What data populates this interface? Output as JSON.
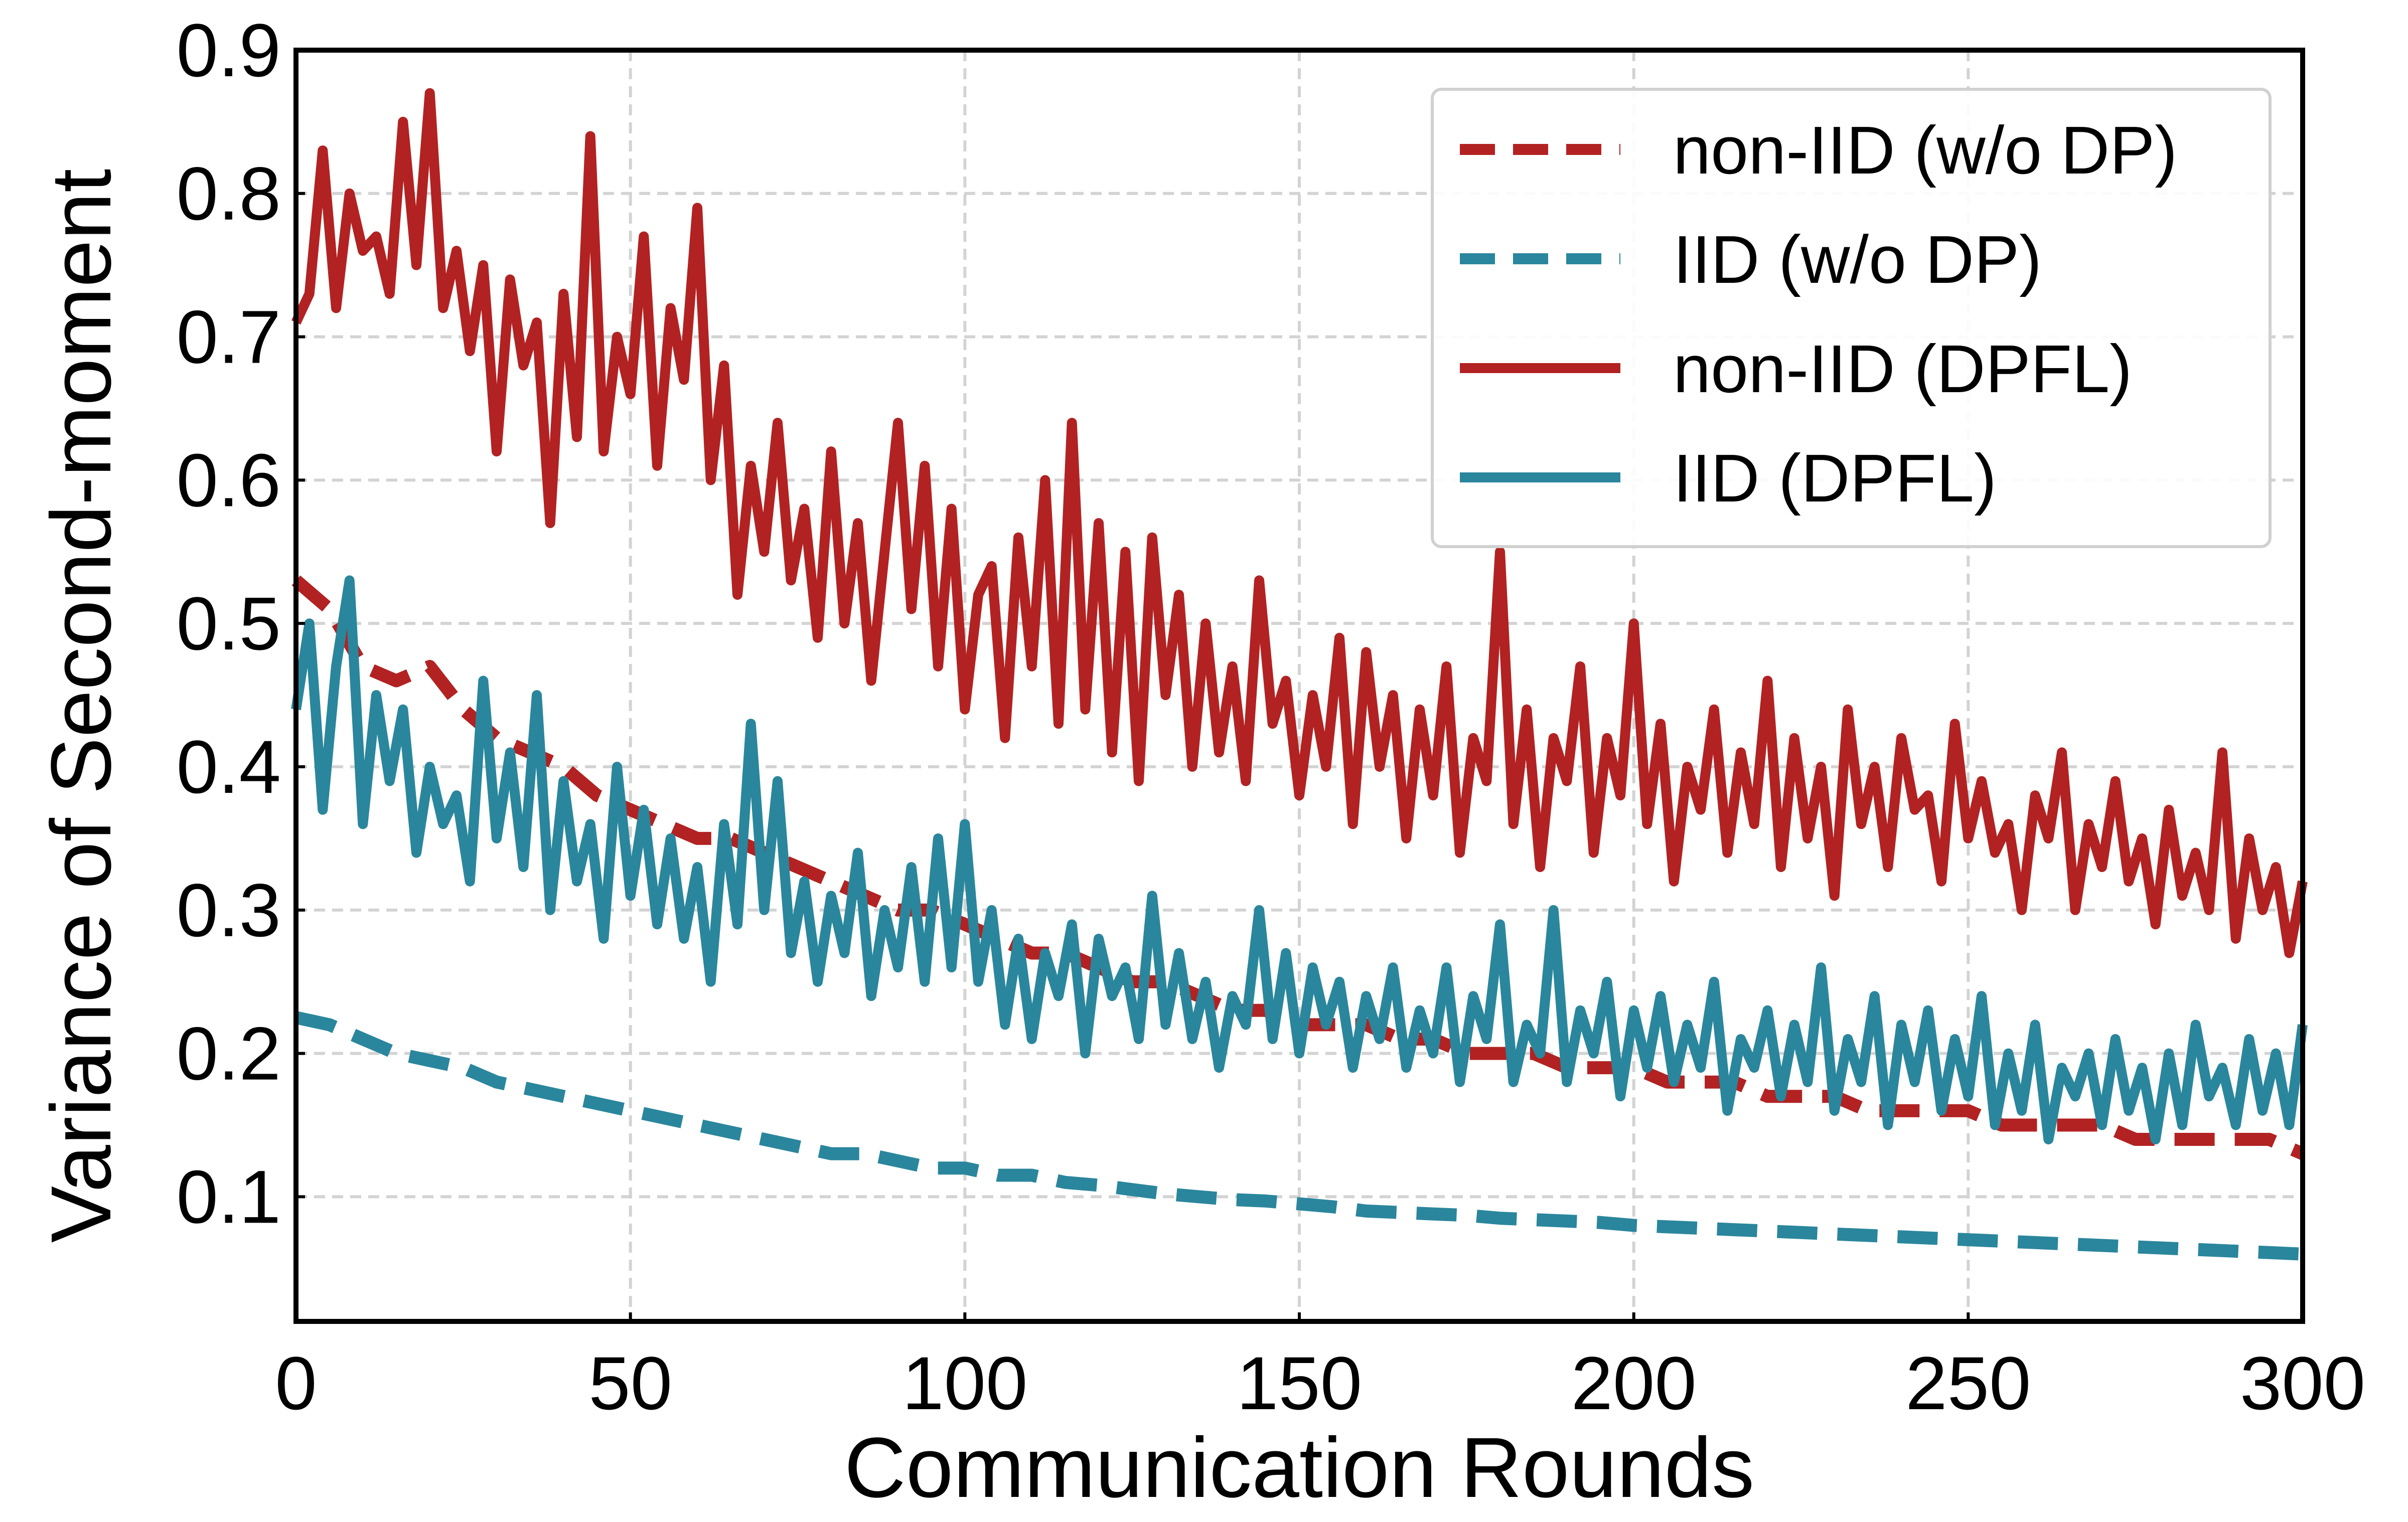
{
  "chart_data": {
    "type": "line",
    "title": "",
    "xlabel": "Communication Rounds",
    "ylabel": "Variance of Second-moment",
    "xlim": [
      0,
      300
    ],
    "ylim": [
      0.013,
      0.9
    ],
    "xticks": [
      0,
      50,
      100,
      150,
      200,
      250,
      300
    ],
    "xtick_labels": [
      "0",
      "50",
      "100",
      "150",
      "200",
      "250",
      "300"
    ],
    "yticks": [
      0.1,
      0.2,
      0.3,
      0.4,
      0.5,
      0.6,
      0.7,
      0.8,
      0.9
    ],
    "ytick_labels": [
      "0.1",
      "0.2",
      "0.3",
      "0.4",
      "0.5",
      "0.6",
      "0.7",
      "0.8",
      "0.9"
    ],
    "grid": true,
    "legend_position": "top-right",
    "series": [
      {
        "name": "non-IID (w/o DP)",
        "color": "#b22222",
        "style": "dashed",
        "x": [
          0,
          5,
          10,
          15,
          20,
          25,
          30,
          35,
          40,
          45,
          50,
          55,
          60,
          65,
          70,
          75,
          80,
          85,
          90,
          95,
          100,
          105,
          110,
          115,
          120,
          125,
          130,
          135,
          140,
          145,
          150,
          155,
          160,
          165,
          170,
          175,
          180,
          185,
          190,
          195,
          200,
          205,
          210,
          215,
          220,
          225,
          230,
          235,
          240,
          245,
          250,
          255,
          260,
          265,
          270,
          275,
          280,
          285,
          290,
          295,
          300
        ],
        "values": [
          0.53,
          0.51,
          0.47,
          0.46,
          0.47,
          0.44,
          0.42,
          0.41,
          0.4,
          0.38,
          0.37,
          0.36,
          0.35,
          0.35,
          0.34,
          0.33,
          0.32,
          0.31,
          0.3,
          0.3,
          0.29,
          0.28,
          0.27,
          0.27,
          0.26,
          0.25,
          0.25,
          0.24,
          0.23,
          0.23,
          0.22,
          0.22,
          0.22,
          0.21,
          0.21,
          0.2,
          0.2,
          0.2,
          0.19,
          0.19,
          0.19,
          0.18,
          0.18,
          0.18,
          0.17,
          0.17,
          0.17,
          0.16,
          0.16,
          0.16,
          0.16,
          0.15,
          0.15,
          0.15,
          0.15,
          0.14,
          0.14,
          0.14,
          0.14,
          0.14,
          0.13
        ]
      },
      {
        "name": "IID (w/o DP)",
        "color": "#2a869c",
        "style": "dashed",
        "x": [
          0,
          5,
          10,
          15,
          20,
          25,
          30,
          35,
          40,
          45,
          50,
          55,
          60,
          65,
          70,
          75,
          80,
          85,
          90,
          95,
          100,
          105,
          110,
          115,
          120,
          125,
          130,
          135,
          140,
          145,
          150,
          155,
          160,
          165,
          170,
          175,
          180,
          185,
          190,
          195,
          200,
          205,
          210,
          215,
          220,
          225,
          230,
          235,
          240,
          245,
          250,
          255,
          260,
          265,
          270,
          275,
          280,
          285,
          290,
          295,
          300
        ],
        "values": [
          0.225,
          0.22,
          0.21,
          0.2,
          0.195,
          0.19,
          0.18,
          0.175,
          0.17,
          0.165,
          0.16,
          0.155,
          0.15,
          0.145,
          0.14,
          0.135,
          0.13,
          0.13,
          0.125,
          0.12,
          0.12,
          0.115,
          0.115,
          0.11,
          0.108,
          0.105,
          0.102,
          0.1,
          0.098,
          0.097,
          0.095,
          0.093,
          0.09,
          0.089,
          0.088,
          0.087,
          0.085,
          0.084,
          0.083,
          0.082,
          0.08,
          0.079,
          0.078,
          0.077,
          0.076,
          0.075,
          0.074,
          0.073,
          0.072,
          0.071,
          0.07,
          0.069,
          0.068,
          0.067,
          0.066,
          0.065,
          0.064,
          0.063,
          0.062,
          0.061,
          0.06
        ]
      },
      {
        "name": "non-IID (DPFL)",
        "color": "#b22222",
        "style": "solid",
        "x": [
          0,
          2,
          4,
          6,
          8,
          10,
          12,
          14,
          16,
          18,
          20,
          22,
          24,
          26,
          28,
          30,
          32,
          34,
          36,
          38,
          40,
          42,
          44,
          46,
          48,
          50,
          52,
          54,
          56,
          58,
          60,
          62,
          64,
          66,
          68,
          70,
          72,
          74,
          76,
          78,
          80,
          82,
          84,
          86,
          88,
          90,
          92,
          94,
          96,
          98,
          100,
          102,
          104,
          106,
          108,
          110,
          112,
          114,
          116,
          118,
          120,
          122,
          124,
          126,
          128,
          130,
          132,
          134,
          136,
          138,
          140,
          142,
          144,
          146,
          148,
          150,
          152,
          154,
          156,
          158,
          160,
          162,
          164,
          166,
          168,
          170,
          172,
          174,
          176,
          178,
          180,
          182,
          184,
          186,
          188,
          190,
          192,
          194,
          196,
          198,
          200,
          202,
          204,
          206,
          208,
          210,
          212,
          214,
          216,
          218,
          220,
          222,
          224,
          226,
          228,
          230,
          232,
          234,
          236,
          238,
          240,
          242,
          244,
          246,
          248,
          250,
          252,
          254,
          256,
          258,
          260,
          262,
          264,
          266,
          268,
          270,
          272,
          274,
          276,
          278,
          280,
          282,
          284,
          286,
          288,
          290,
          292,
          294,
          296,
          298,
          300
        ],
        "values": [
          0.71,
          0.73,
          0.83,
          0.72,
          0.8,
          0.76,
          0.77,
          0.73,
          0.85,
          0.75,
          0.87,
          0.72,
          0.76,
          0.69,
          0.75,
          0.62,
          0.74,
          0.68,
          0.71,
          0.57,
          0.73,
          0.63,
          0.84,
          0.62,
          0.7,
          0.66,
          0.77,
          0.61,
          0.72,
          0.67,
          0.79,
          0.6,
          0.68,
          0.52,
          0.61,
          0.55,
          0.64,
          0.53,
          0.58,
          0.49,
          0.62,
          0.5,
          0.57,
          0.46,
          0.55,
          0.64,
          0.51,
          0.61,
          0.47,
          0.58,
          0.44,
          0.52,
          0.54,
          0.42,
          0.56,
          0.47,
          0.6,
          0.43,
          0.64,
          0.44,
          0.57,
          0.41,
          0.55,
          0.39,
          0.56,
          0.45,
          0.52,
          0.4,
          0.5,
          0.41,
          0.47,
          0.39,
          0.53,
          0.43,
          0.46,
          0.38,
          0.45,
          0.4,
          0.49,
          0.36,
          0.48,
          0.4,
          0.45,
          0.35,
          0.44,
          0.38,
          0.47,
          0.34,
          0.42,
          0.39,
          0.55,
          0.36,
          0.44,
          0.33,
          0.42,
          0.39,
          0.47,
          0.34,
          0.42,
          0.38,
          0.5,
          0.36,
          0.43,
          0.32,
          0.4,
          0.37,
          0.44,
          0.34,
          0.41,
          0.36,
          0.46,
          0.33,
          0.42,
          0.35,
          0.4,
          0.31,
          0.44,
          0.36,
          0.4,
          0.33,
          0.42,
          0.37,
          0.38,
          0.32,
          0.43,
          0.35,
          0.39,
          0.34,
          0.36,
          0.3,
          0.38,
          0.35,
          0.41,
          0.3,
          0.36,
          0.33,
          0.39,
          0.32,
          0.35,
          0.29,
          0.37,
          0.31,
          0.34,
          0.3,
          0.41,
          0.28,
          0.35,
          0.3,
          0.33,
          0.27,
          0.32
        ]
      },
      {
        "name": "IID (DPFL)",
        "color": "#2a869c",
        "style": "solid",
        "x": [
          0,
          2,
          4,
          6,
          8,
          10,
          12,
          14,
          16,
          18,
          20,
          22,
          24,
          26,
          28,
          30,
          32,
          34,
          36,
          38,
          40,
          42,
          44,
          46,
          48,
          50,
          52,
          54,
          56,
          58,
          60,
          62,
          64,
          66,
          68,
          70,
          72,
          74,
          76,
          78,
          80,
          82,
          84,
          86,
          88,
          90,
          92,
          94,
          96,
          98,
          100,
          102,
          104,
          106,
          108,
          110,
          112,
          114,
          116,
          118,
          120,
          122,
          124,
          126,
          128,
          130,
          132,
          134,
          136,
          138,
          140,
          142,
          144,
          146,
          148,
          150,
          152,
          154,
          156,
          158,
          160,
          162,
          164,
          166,
          168,
          170,
          172,
          174,
          176,
          178,
          180,
          182,
          184,
          186,
          188,
          190,
          192,
          194,
          196,
          198,
          200,
          202,
          204,
          206,
          208,
          210,
          212,
          214,
          216,
          218,
          220,
          222,
          224,
          226,
          228,
          230,
          232,
          234,
          236,
          238,
          240,
          242,
          244,
          246,
          248,
          250,
          252,
          254,
          256,
          258,
          260,
          262,
          264,
          266,
          268,
          270,
          272,
          274,
          276,
          278,
          280,
          282,
          284,
          286,
          288,
          290,
          292,
          294,
          296,
          298,
          300
        ],
        "values": [
          0.44,
          0.5,
          0.37,
          0.47,
          0.53,
          0.36,
          0.45,
          0.39,
          0.44,
          0.34,
          0.4,
          0.36,
          0.38,
          0.32,
          0.46,
          0.35,
          0.41,
          0.33,
          0.45,
          0.3,
          0.39,
          0.32,
          0.36,
          0.28,
          0.4,
          0.31,
          0.37,
          0.29,
          0.35,
          0.28,
          0.33,
          0.25,
          0.36,
          0.29,
          0.43,
          0.3,
          0.39,
          0.27,
          0.32,
          0.25,
          0.31,
          0.27,
          0.34,
          0.24,
          0.3,
          0.26,
          0.33,
          0.25,
          0.35,
          0.26,
          0.36,
          0.25,
          0.3,
          0.22,
          0.28,
          0.21,
          0.27,
          0.24,
          0.29,
          0.2,
          0.28,
          0.24,
          0.26,
          0.21,
          0.31,
          0.22,
          0.27,
          0.21,
          0.25,
          0.19,
          0.24,
          0.22,
          0.3,
          0.21,
          0.27,
          0.2,
          0.26,
          0.22,
          0.25,
          0.19,
          0.24,
          0.21,
          0.26,
          0.19,
          0.23,
          0.2,
          0.26,
          0.18,
          0.24,
          0.21,
          0.29,
          0.18,
          0.22,
          0.2,
          0.3,
          0.18,
          0.23,
          0.2,
          0.25,
          0.17,
          0.23,
          0.19,
          0.24,
          0.18,
          0.22,
          0.19,
          0.25,
          0.16,
          0.21,
          0.19,
          0.23,
          0.17,
          0.22,
          0.18,
          0.26,
          0.16,
          0.21,
          0.18,
          0.24,
          0.15,
          0.22,
          0.18,
          0.23,
          0.16,
          0.21,
          0.17,
          0.24,
          0.15,
          0.2,
          0.16,
          0.22,
          0.14,
          0.19,
          0.17,
          0.2,
          0.15,
          0.21,
          0.16,
          0.19,
          0.14,
          0.2,
          0.15,
          0.22,
          0.17,
          0.19,
          0.15,
          0.21,
          0.16,
          0.2,
          0.15,
          0.22
        ]
      }
    ]
  }
}
